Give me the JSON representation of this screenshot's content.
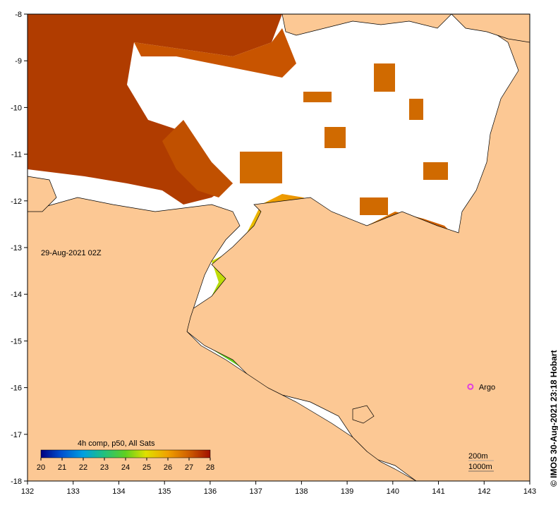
{
  "map": {
    "timestamp": "29-Aug-2021 02Z",
    "x_ticks": [
      "132",
      "133",
      "134",
      "135",
      "136",
      "137",
      "138",
      "139",
      "140",
      "141",
      "142",
      "143"
    ],
    "y_ticks": [
      "-8",
      "-9",
      "-10",
      "-11",
      "-12",
      "-13",
      "-14",
      "-15",
      "-16",
      "-17",
      "-18"
    ],
    "legend": {
      "title": "4h comp, p50, All Sats",
      "ticks": [
        "20",
        "21",
        "22",
        "23",
        "24",
        "25",
        "26",
        "27",
        "28"
      ]
    },
    "contours": {
      "depth1": "200m",
      "depth2": "1000m"
    },
    "argo": {
      "label": "Argo",
      "lon": 141.7,
      "lat": -15.98
    },
    "copyright": "©  IMOS 30-Aug-2021 23:18 Hobart",
    "colors": {
      "land": "#fcc894",
      "nodata": "#ffffff",
      "argo": "#e040e0"
    }
  }
}
